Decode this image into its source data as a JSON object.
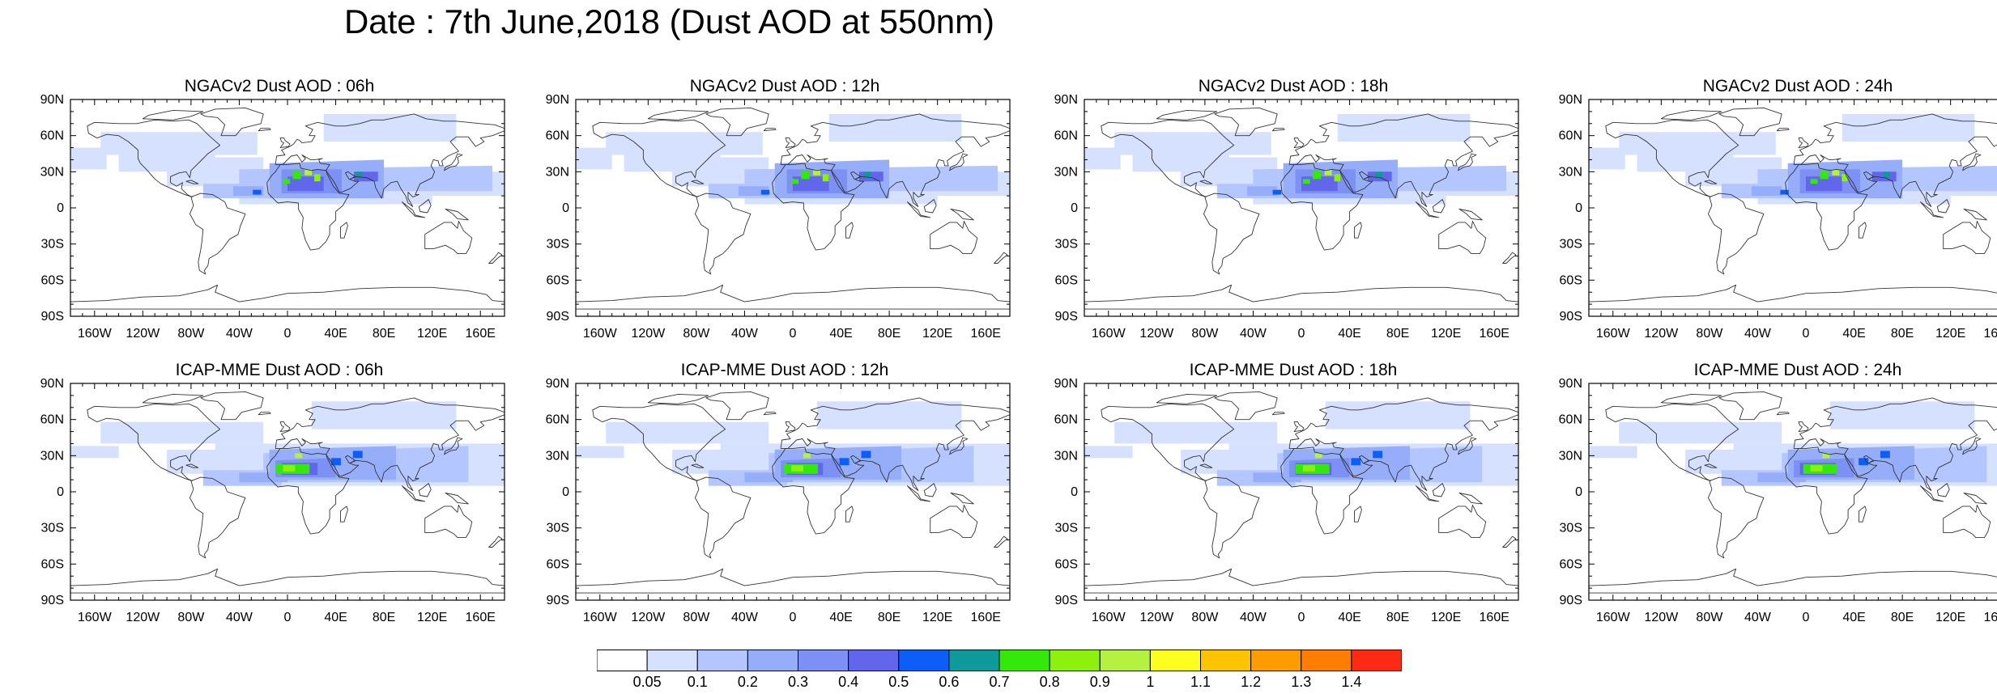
{
  "figure": {
    "title": "Date : 7th June,2018 (Dust AOD at 550nm)"
  },
  "panels": [
    {
      "title": "NGACv2 Dust AOD : 06h",
      "model": "NGACv2",
      "lead": "06h"
    },
    {
      "title": "NGACv2 Dust AOD : 12h",
      "model": "NGACv2",
      "lead": "12h"
    },
    {
      "title": "NGACv2 Dust AOD : 18h",
      "model": "NGACv2",
      "lead": "18h"
    },
    {
      "title": "NGACv2 Dust AOD : 24h",
      "model": "NGACv2",
      "lead": "24h"
    },
    {
      "title": "ICAP-MME Dust AOD : 06h",
      "model": "ICAP-MME",
      "lead": "06h"
    },
    {
      "title": "ICAP-MME Dust AOD : 12h",
      "model": "ICAP-MME",
      "lead": "12h"
    },
    {
      "title": "ICAP-MME Dust AOD : 18h",
      "model": "ICAP-MME",
      "lead": "18h"
    },
    {
      "title": "ICAP-MME Dust AOD : 24h",
      "model": "ICAP-MME",
      "lead": "24h"
    }
  ],
  "axes": {
    "lon_range": [
      -180,
      180
    ],
    "lat_range": [
      -90,
      90
    ],
    "x_ticks": [
      {
        "value": -160,
        "label": "160W"
      },
      {
        "value": -120,
        "label": "120W"
      },
      {
        "value": -80,
        "label": "80W"
      },
      {
        "value": -40,
        "label": "40W"
      },
      {
        "value": 0,
        "label": "0"
      },
      {
        "value": 40,
        "label": "40E"
      },
      {
        "value": 80,
        "label": "80E"
      },
      {
        "value": 120,
        "label": "120E"
      },
      {
        "value": 160,
        "label": "160E"
      }
    ],
    "y_ticks": [
      {
        "value": 90,
        "label": "90N"
      },
      {
        "value": 60,
        "label": "60N"
      },
      {
        "value": 30,
        "label": "30N"
      },
      {
        "value": 0,
        "label": "0"
      },
      {
        "value": -30,
        "label": "30S"
      },
      {
        "value": -60,
        "label": "60S"
      },
      {
        "value": -90,
        "label": "90S"
      }
    ]
  },
  "colorbar": {
    "labels": [
      "0.05",
      "0.1",
      "0.2",
      "0.3",
      "0.4",
      "0.5",
      "0.6",
      "0.7",
      "0.8",
      "0.9",
      "1",
      "1.1",
      "1.2",
      "1.3",
      "1.4"
    ],
    "colors": [
      "#ffffff",
      "#d6e1ff",
      "#b4c6ff",
      "#96aefa",
      "#7d91f5",
      "#6266eb",
      "#0d5df7",
      "#10999a",
      "#34e90a",
      "#8cf10c",
      "#b5f23f",
      "#ffff1f",
      "#ffc300",
      "#ff9c00",
      "#ff7d00",
      "#ff2a13"
    ]
  },
  "map_colors": {
    "coast": "#333333",
    "frame": "#000000"
  }
}
